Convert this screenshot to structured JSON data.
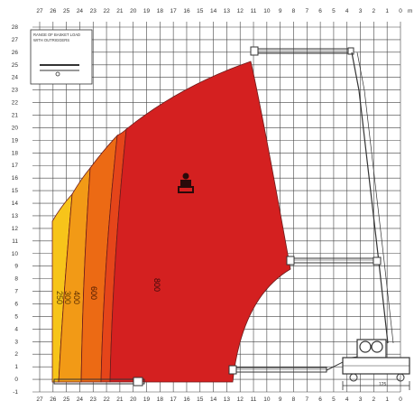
{
  "diagram": {
    "kind": "working-range",
    "x_axis": {
      "unit_label": "m",
      "ticks": [
        "27",
        "26",
        "25",
        "24",
        "23",
        "22",
        "21",
        "20",
        "19",
        "18",
        "17",
        "16",
        "15",
        "14",
        "13",
        "12",
        "11",
        "10",
        "9",
        "8",
        "7",
        "6",
        "5",
        "4",
        "3",
        "2",
        "1",
        "0"
      ]
    },
    "y_axis": {
      "ticks": [
        "28",
        "27",
        "26",
        "25",
        "24",
        "23",
        "22",
        "21",
        "20",
        "19",
        "18",
        "17",
        "16",
        "15",
        "14",
        "13",
        "12",
        "11",
        "10",
        "9",
        "8",
        "7",
        "6",
        "5",
        "4",
        "3",
        "2",
        "1",
        "0",
        "-1"
      ]
    },
    "legend": {
      "line1": "RANGE OF BASKET LOAD",
      "line2": "WITH OUTRIGGERS"
    },
    "load_zones": [
      {
        "label": "250",
        "color": "#f7c41a"
      },
      {
        "label": "300",
        "color": "#f29a16"
      },
      {
        "label": "400",
        "color": "#ec6a14"
      },
      {
        "label": "600",
        "color": "#e5451a"
      },
      {
        "label": "800",
        "color": "#d42020"
      }
    ],
    "outline_color": "#6d1c1c",
    "dimension_label": "125"
  }
}
